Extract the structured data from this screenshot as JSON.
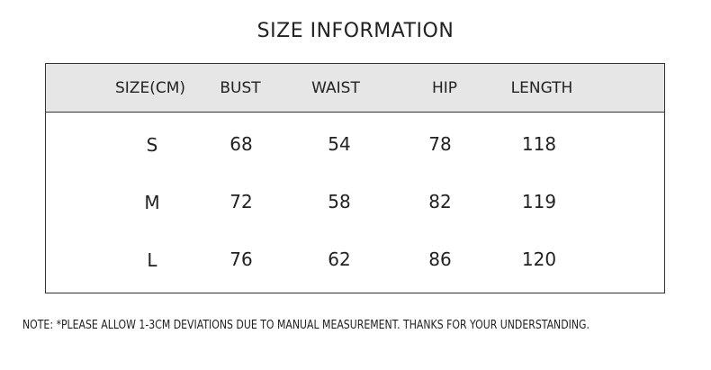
{
  "title": "SIZE INFORMATION",
  "table": {
    "headers": [
      "SIZE(CM)",
      "BUST",
      "WAIST",
      "HIP",
      "LENGTH"
    ],
    "rows": [
      [
        "S",
        "68",
        "54",
        "78",
        "118"
      ],
      [
        "M",
        "72",
        "58",
        "82",
        "119"
      ],
      [
        "L",
        "76",
        "62",
        "86",
        "120"
      ]
    ],
    "header_bg": "#e6e6e6"
  },
  "note": "NOTE:  *PLEASE ALLOW 1-3CM DEVIATIONS DUE TO MANUAL MEASUREMENT. THANKS FOR YOUR UNDERSTANDING."
}
